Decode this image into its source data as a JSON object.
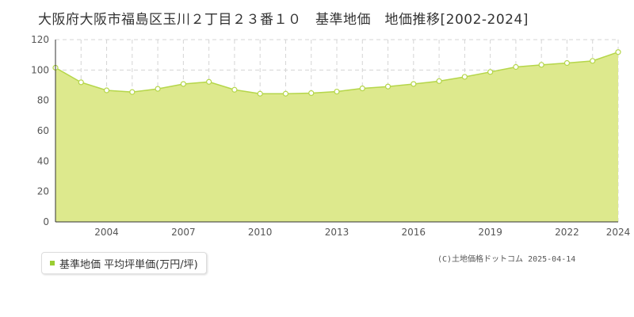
{
  "title": "大阪府大阪市福島区玉川２丁目２３番１０　基準地価　地価推移[2002-2024]",
  "legend": {
    "label": "基準地価 平均坪単価(万円/坪)"
  },
  "copyright": "(C)土地価格ドットコム 2025-04-14",
  "colors": {
    "fill": "#dde98d",
    "line": "#b5d64a",
    "marker_stroke": "#b5d64a",
    "legend_marker": "#9acd32"
  },
  "chart_data": {
    "type": "area",
    "x": [
      2002,
      2003,
      2004,
      2005,
      2006,
      2007,
      2008,
      2009,
      2010,
      2011,
      2012,
      2013,
      2014,
      2015,
      2016,
      2017,
      2018,
      2019,
      2020,
      2021,
      2022,
      2023,
      2024
    ],
    "series": [
      {
        "name": "基準地価 平均坪単価(万円/坪)",
        "values": [
          101.5,
          91.9,
          86.6,
          85.5,
          87.6,
          90.8,
          92.2,
          87.0,
          84.4,
          84.4,
          84.8,
          85.8,
          87.9,
          89.1,
          90.8,
          92.7,
          95.5,
          98.7,
          102.0,
          103.4,
          104.6,
          106.0,
          111.8
        ]
      }
    ],
    "xlim": [
      2002,
      2024
    ],
    "ylim": [
      0,
      120
    ],
    "yticks": [
      0,
      20,
      40,
      60,
      80,
      100,
      120
    ],
    "xticks": [
      2004,
      2007,
      2010,
      2013,
      2016,
      2019,
      2022,
      2024
    ],
    "grid": true
  }
}
